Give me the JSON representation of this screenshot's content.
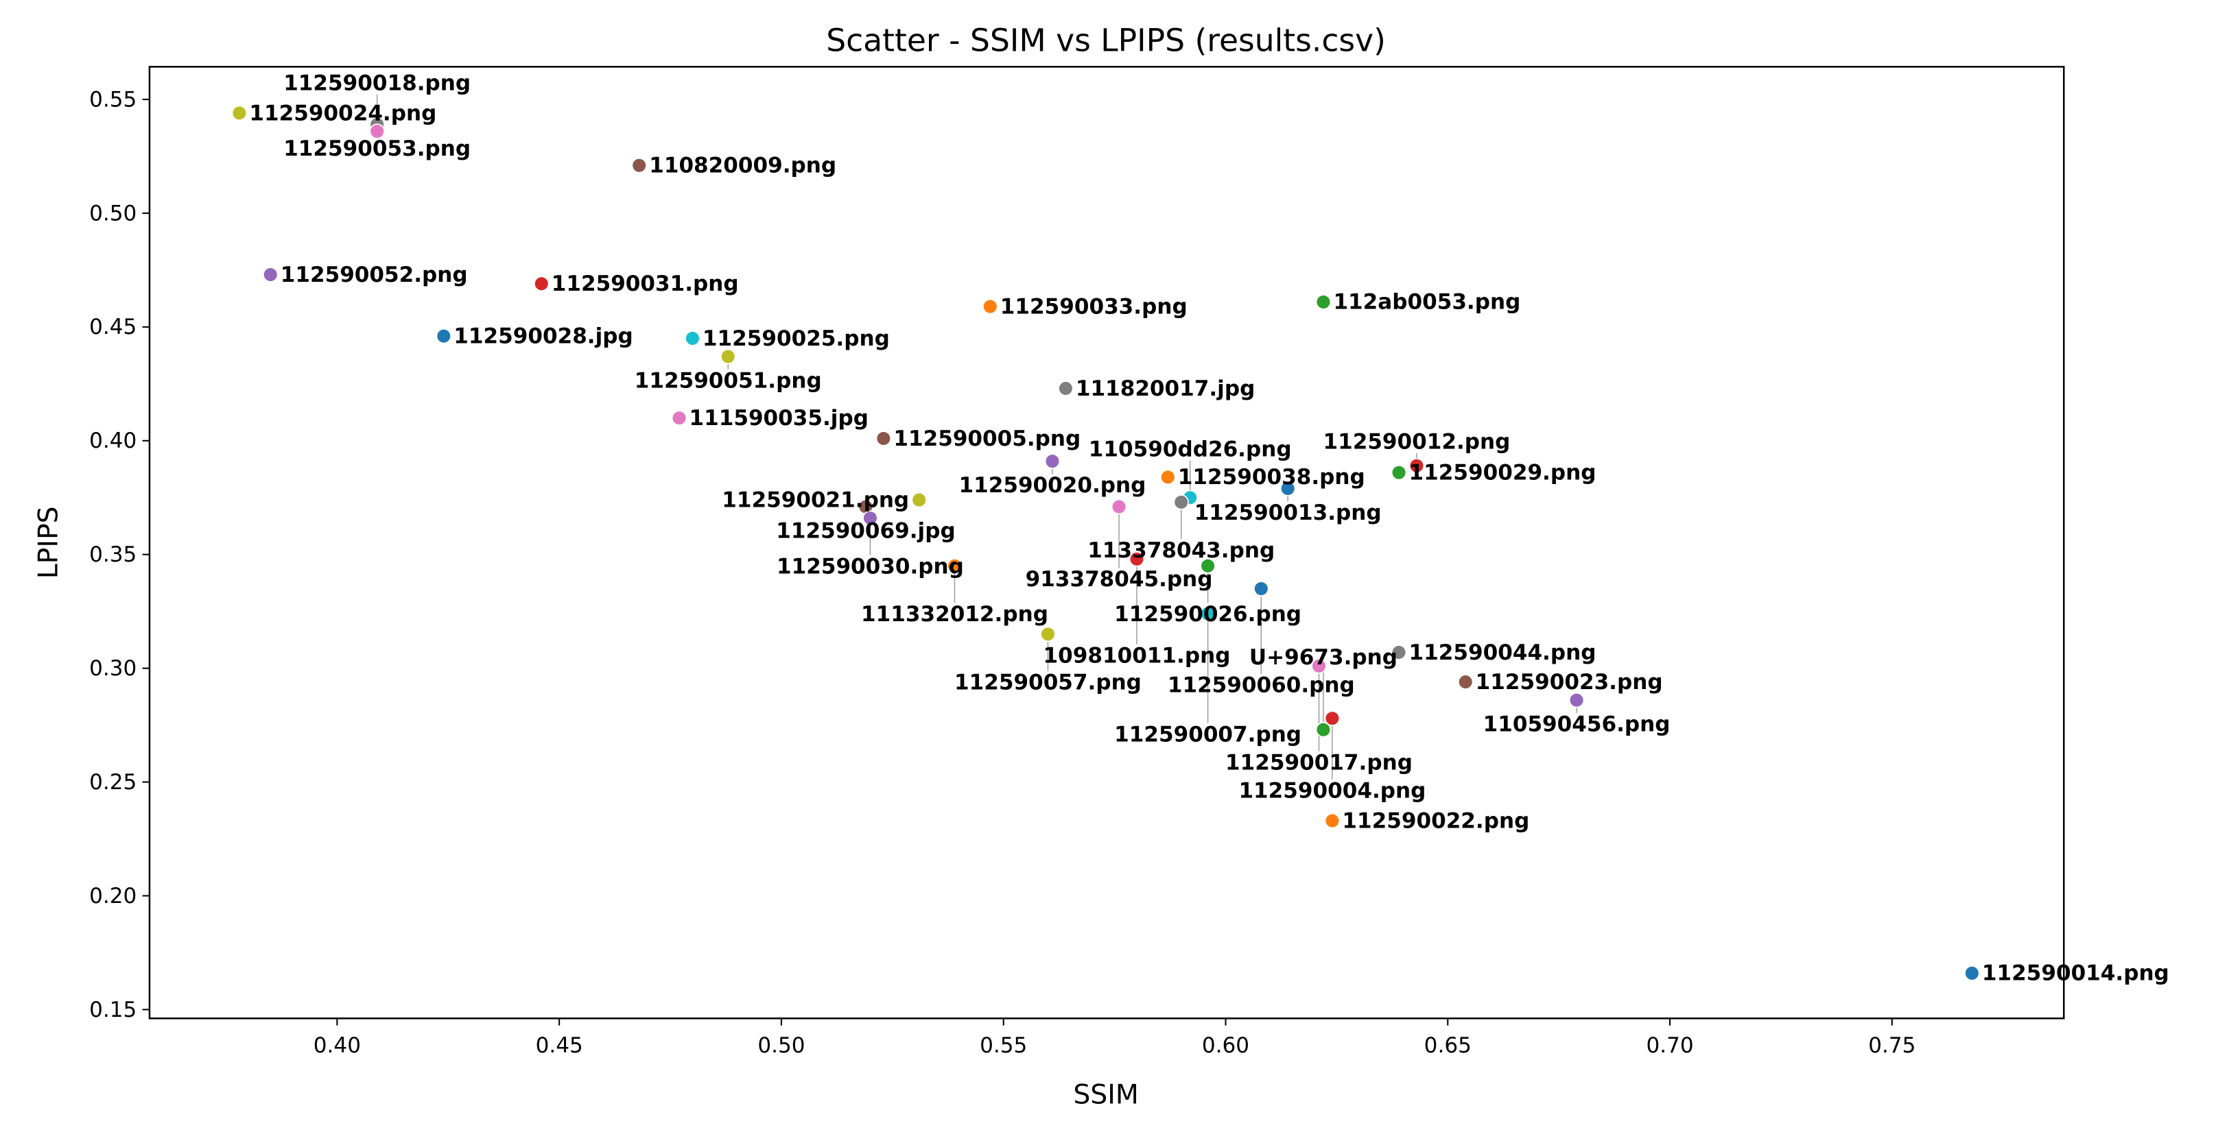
{
  "chart_data": {
    "type": "scatter",
    "title": "Scatter - SSIM vs LPIPS (results.csv)",
    "xlabel": "SSIM",
    "ylabel": "LPIPS",
    "xlim": [
      0.355,
      0.785
    ],
    "ylim": [
      0.145,
      0.563
    ],
    "xticks": [
      "0.40",
      "0.45",
      "0.50",
      "0.55",
      "0.60",
      "0.65",
      "0.70",
      "0.75"
    ],
    "yticks": [
      "0.15",
      "0.20",
      "0.25",
      "0.30",
      "0.35",
      "0.40",
      "0.45",
      "0.50",
      "0.55"
    ],
    "grid": false,
    "colors": [
      "#1f77b4",
      "#ff7f0e",
      "#2ca02c",
      "#d62728",
      "#9467bd",
      "#8c564b",
      "#e377c2",
      "#7f7f7f",
      "#bcbd22",
      "#17becf"
    ],
    "points": [
      {
        "label": "112590024.png",
        "x": 0.378,
        "y": 0.544,
        "color": "#bcbd22"
      },
      {
        "label": "112590053.png",
        "x": 0.409,
        "y": 0.539,
        "color": "#7f7f7f"
      },
      {
        "label": "112590018.png",
        "x": 0.409,
        "y": 0.536,
        "color": "#e377c2"
      },
      {
        "label": "110820009.png",
        "x": 0.468,
        "y": 0.521,
        "color": "#8c564b"
      },
      {
        "label": "112590052.png",
        "x": 0.385,
        "y": 0.473,
        "color": "#9467bd"
      },
      {
        "label": "112590031.png",
        "x": 0.446,
        "y": 0.469,
        "color": "#d62728"
      },
      {
        "label": "112590028.jpg",
        "x": 0.424,
        "y": 0.446,
        "color": "#1f77b4"
      },
      {
        "label": "112590025.png",
        "x": 0.48,
        "y": 0.445,
        "color": "#17becf"
      },
      {
        "label": "112590051.png",
        "x": 0.488,
        "y": 0.437,
        "color": "#bcbd22"
      },
      {
        "label": "112590033.png",
        "x": 0.547,
        "y": 0.459,
        "color": "#ff7f0e"
      },
      {
        "label": "112ab0053.png",
        "x": 0.622,
        "y": 0.461,
        "color": "#2ca02c"
      },
      {
        "label": "111820017.jpg",
        "x": 0.564,
        "y": 0.423,
        "color": "#7f7f7f"
      },
      {
        "label": "111590035.jpg",
        "x": 0.477,
        "y": 0.41,
        "color": "#e377c2"
      },
      {
        "label": "112590005.png",
        "x": 0.523,
        "y": 0.401,
        "color": "#8c564b"
      },
      {
        "label": "112590020.png",
        "x": 0.561,
        "y": 0.391,
        "color": "#9467bd"
      },
      {
        "label": "112590038.png",
        "x": 0.587,
        "y": 0.384,
        "color": "#ff7f0e"
      },
      {
        "label": "112590029.png",
        "x": 0.639,
        "y": 0.386,
        "color": "#2ca02c"
      },
      {
        "label": "112590012.png",
        "x": 0.643,
        "y": 0.389,
        "color": "#d62728"
      },
      {
        "label": "112590013.png",
        "x": 0.614,
        "y": 0.379,
        "color": "#1f77b4"
      },
      {
        "label": "110590dd26.png",
        "x": 0.592,
        "y": 0.375,
        "color": "#17becf"
      },
      {
        "label": "113378043.png",
        "x": 0.59,
        "y": 0.373,
        "color": "#7f7f7f"
      },
      {
        "label": "913378045.png",
        "x": 0.576,
        "y": 0.371,
        "color": "#e377c2"
      },
      {
        "label": "112590021.png",
        "x": 0.531,
        "y": 0.374,
        "color": "#bcbd22"
      },
      {
        "label": "112590069.jpg",
        "x": 0.519,
        "y": 0.371,
        "color": "#8c564b"
      },
      {
        "label": "112590030.png",
        "x": 0.52,
        "y": 0.366,
        "color": "#9467bd"
      },
      {
        "label": "111332012.png",
        "x": 0.539,
        "y": 0.345,
        "color": "#ff7f0e"
      },
      {
        "label": "109810011.png",
        "x": 0.58,
        "y": 0.348,
        "color": "#d62728"
      },
      {
        "label": "112590026.png",
        "x": 0.596,
        "y": 0.345,
        "color": "#2ca02c"
      },
      {
        "label": "112590060.png",
        "x": 0.608,
        "y": 0.335,
        "color": "#1f77b4"
      },
      {
        "label": "112590007.png",
        "x": 0.596,
        "y": 0.324,
        "color": "#17becf"
      },
      {
        "label": "112590057.png",
        "x": 0.56,
        "y": 0.315,
        "color": "#bcbd22"
      },
      {
        "label": "112590044.png",
        "x": 0.639,
        "y": 0.307,
        "color": "#7f7f7f"
      },
      {
        "label": "112590017.png",
        "x": 0.621,
        "y": 0.301,
        "color": "#e377c2"
      },
      {
        "label": "112590023.png",
        "x": 0.654,
        "y": 0.294,
        "color": "#8c564b"
      },
      {
        "label": "110590456.png",
        "x": 0.679,
        "y": 0.286,
        "color": "#9467bd"
      },
      {
        "label": "112590004.png",
        "x": 0.624,
        "y": 0.278,
        "color": "#d62728"
      },
      {
        "label": "U+9673.png",
        "x": 0.622,
        "y": 0.273,
        "color": "#2ca02c"
      },
      {
        "label": "112590022.png",
        "x": 0.624,
        "y": 0.233,
        "color": "#ff7f0e"
      },
      {
        "label": "112590014.png",
        "x": 0.768,
        "y": 0.166,
        "color": "#1f77b4"
      }
    ]
  }
}
